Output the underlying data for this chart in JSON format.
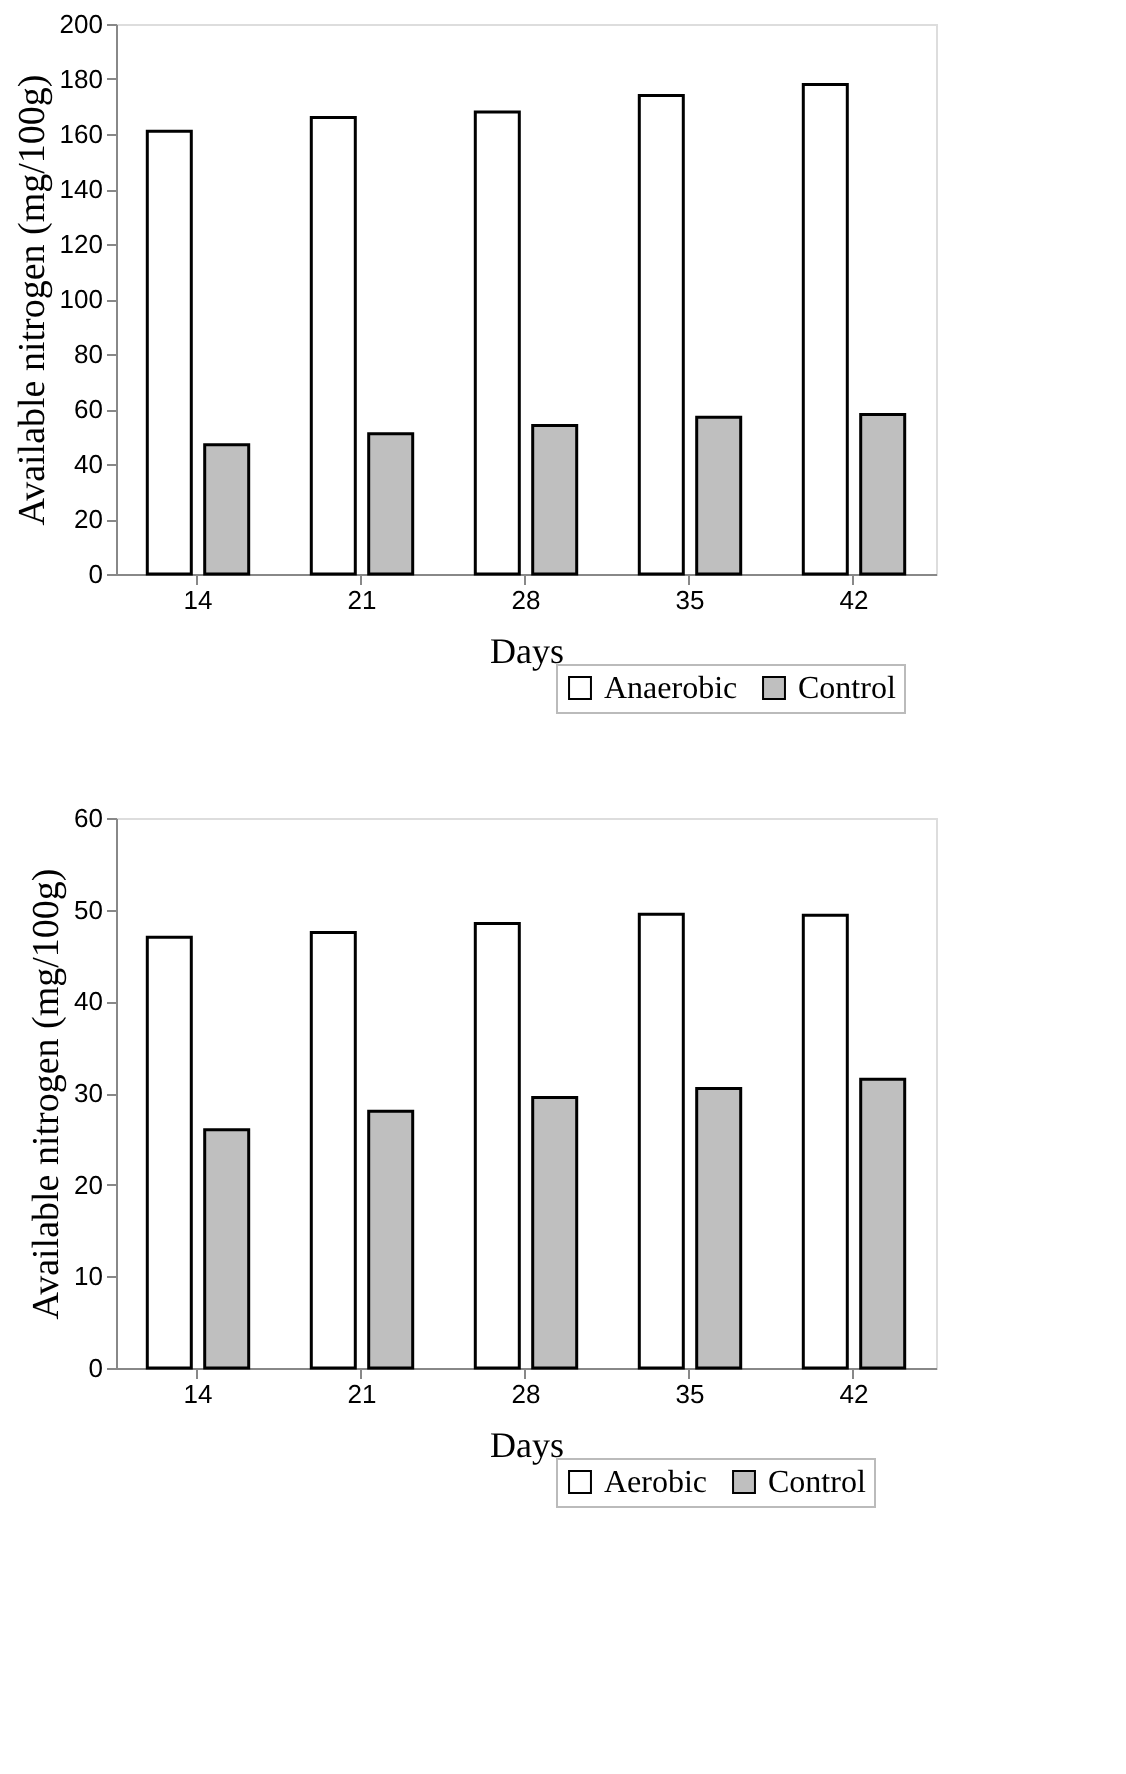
{
  "chart_data": [
    {
      "type": "bar",
      "xlabel": "Days",
      "ylabel": "Available nitrogen (mg/100g)",
      "categories": [
        "14",
        "21",
        "28",
        "35",
        "42"
      ],
      "ylim": [
        0,
        200
      ],
      "yticks": [
        0,
        20,
        40,
        60,
        80,
        100,
        120,
        140,
        160,
        180,
        200
      ],
      "grid": false,
      "legend": "bottom right",
      "series": [
        {
          "name": "Anaerobic",
          "color": "#ffffff",
          "values": [
            161,
            166,
            168,
            174,
            178
          ]
        },
        {
          "name": "Control",
          "color": "#bfbfbf",
          "values": [
            47,
            51,
            54,
            57,
            58
          ]
        }
      ]
    },
    {
      "type": "bar",
      "xlabel": "Days",
      "ylabel": "Available nitrogen (mg/100g)",
      "categories": [
        "14",
        "21",
        "28",
        "35",
        "42"
      ],
      "ylim": [
        0,
        60
      ],
      "yticks": [
        0,
        10,
        20,
        30,
        40,
        50,
        60
      ],
      "grid": false,
      "legend": "bottom right",
      "series": [
        {
          "name": "Aerobic",
          "color": "#ffffff",
          "values": [
            47,
            47.5,
            48.5,
            49.5,
            49.4
          ]
        },
        {
          "name": "Control",
          "color": "#bfbfbf",
          "values": [
            26,
            28,
            29.5,
            30.5,
            31.5
          ]
        }
      ]
    }
  ]
}
